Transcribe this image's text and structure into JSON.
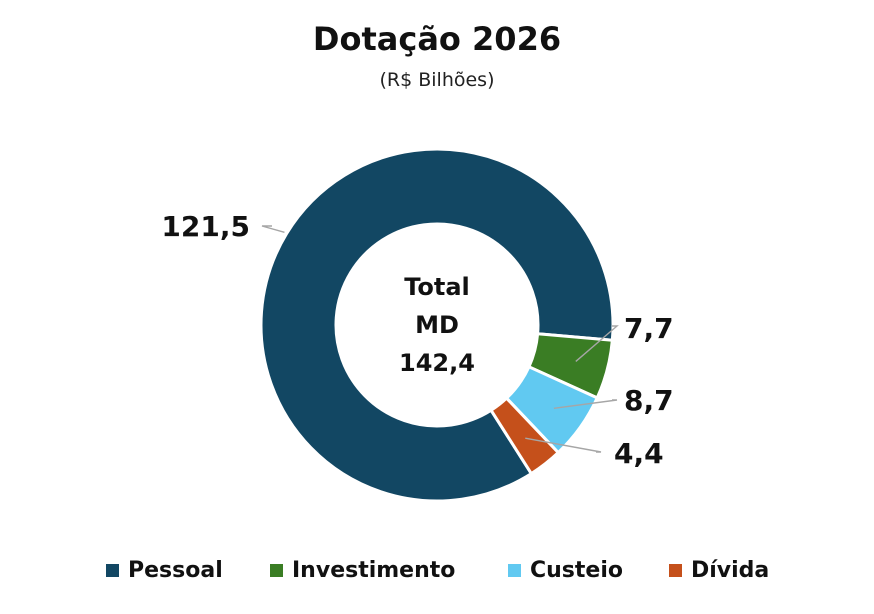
{
  "chart_data": {
    "type": "pie",
    "title": "Dotação 2026",
    "subtitle": "(R$ Bilhões)",
    "center_label": [
      "Total",
      "MD",
      "142,4"
    ],
    "categories": [
      "Pessoal",
      "Investimento",
      "Custeio",
      "Dívida"
    ],
    "values": [
      121.5,
      7.7,
      8.7,
      4.4
    ],
    "value_labels": [
      "121,5",
      "7,7",
      "8,7",
      "4,4"
    ],
    "colors": [
      "#124763",
      "#3a7d24",
      "#61c9f1",
      "#c5501b"
    ],
    "legend": "bottom",
    "donut": true
  }
}
